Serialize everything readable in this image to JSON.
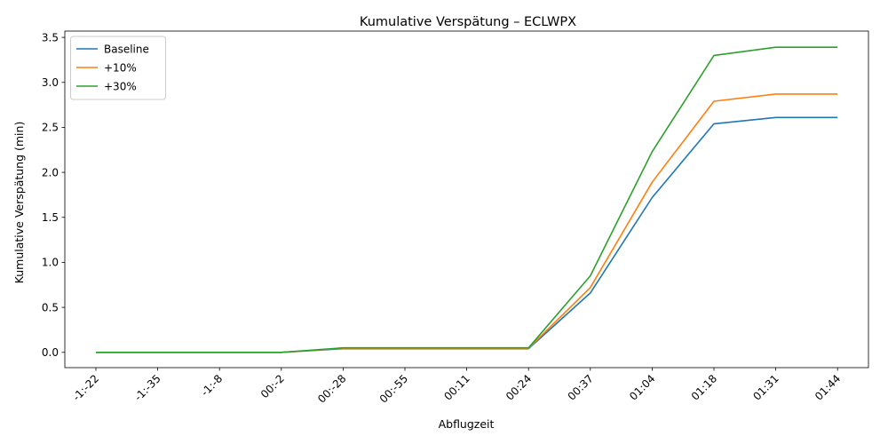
{
  "chart_data": {
    "type": "line",
    "title": "Kumulative Verspätung – ECLWPX",
    "xlabel": "Abflugzeit",
    "ylabel": "Kumulative Verspätung (min)",
    "categories": [
      "-1:-22",
      "-1:-35",
      "-1:-8",
      "00:-2",
      "00:-28",
      "00:-55",
      "00:11",
      "00:24",
      "00:37",
      "01:04",
      "01:18",
      "01:31",
      "01:44"
    ],
    "ylim": [
      -0.17,
      3.57
    ],
    "yticks": [
      "0.0",
      "0.5",
      "1.0",
      "1.5",
      "2.0",
      "2.5",
      "3.0",
      "3.5"
    ],
    "ytick_values": [
      0,
      0.5,
      1.0,
      1.5,
      2.0,
      2.5,
      3.0,
      3.5
    ],
    "grid": false,
    "legend": "top-left",
    "series": [
      {
        "name": "Baseline",
        "color": "#1f77b4",
        "values": [
          0,
          0,
          0,
          0,
          0.04,
          0.04,
          0.04,
          0.04,
          0.66,
          1.72,
          2.54,
          2.61,
          2.61
        ]
      },
      {
        "name": "+10%",
        "color": "#ff7f0e",
        "values": [
          0,
          0,
          0,
          0,
          0.045,
          0.045,
          0.045,
          0.045,
          0.72,
          1.89,
          2.79,
          2.87,
          2.87
        ]
      },
      {
        "name": "+30%",
        "color": "#2ca02c",
        "values": [
          0,
          0,
          0,
          0,
          0.05,
          0.05,
          0.05,
          0.05,
          0.85,
          2.23,
          3.3,
          3.39,
          3.39
        ]
      }
    ]
  }
}
